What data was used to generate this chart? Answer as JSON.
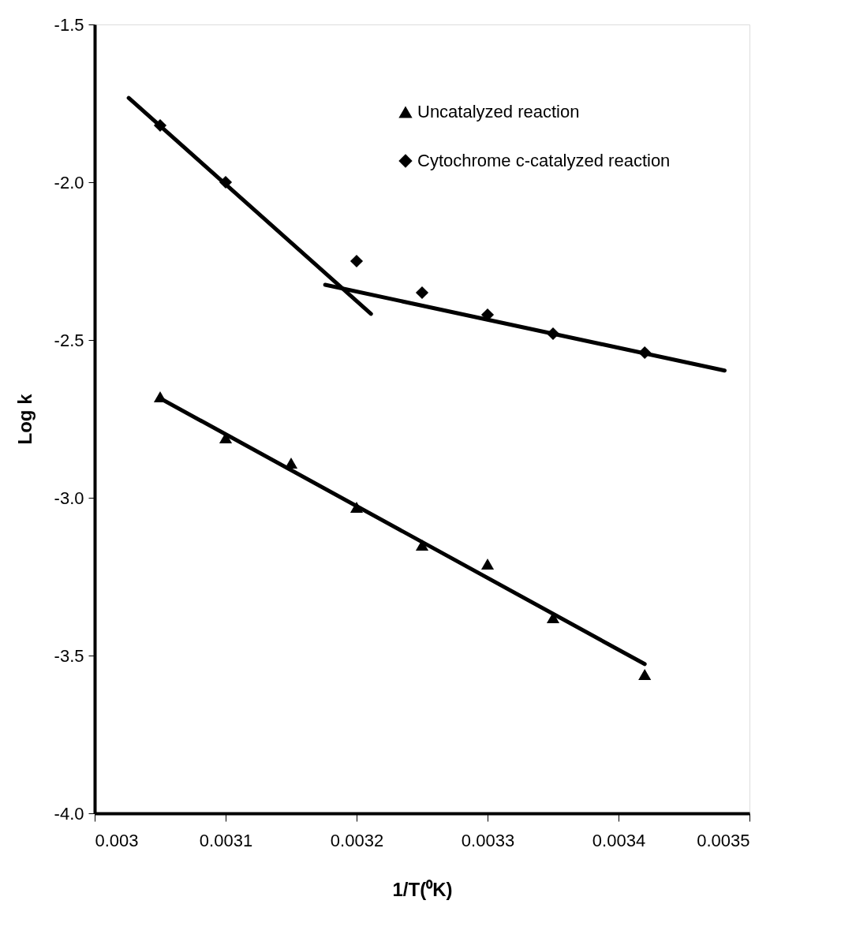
{
  "chart_data": {
    "type": "scatter",
    "xlabel": "1/T(⁰K)",
    "ylabel": "Log k",
    "xlim": [
      0.003,
      0.0035
    ],
    "ylim": [
      -4.0,
      -1.5
    ],
    "xticks": [
      0.003,
      0.0031,
      0.0032,
      0.0033,
      0.0034,
      0.0035
    ],
    "yticks": [
      {
        "value": -4.0,
        "label": "-4.0"
      },
      {
        "value": -3.5,
        "label": "-3.5"
      },
      {
        "value": -3.0,
        "label": "-3.0"
      },
      {
        "value": -2.5,
        "label": "-2.5"
      },
      {
        "value": -2.0,
        "label": "-2.0"
      },
      {
        "value": -1.5,
        "label": "-1.5"
      }
    ],
    "grid": false,
    "legend": "top right",
    "series": [
      {
        "name": "Uncatalyzed reaction",
        "marker": "triangle",
        "color": "#000000",
        "x": [
          0.00305,
          0.0031,
          0.00315,
          0.0032,
          0.00325,
          0.0033,
          0.00335,
          0.00342
        ],
        "values": [
          -2.68,
          -2.81,
          -2.89,
          -3.03,
          -3.15,
          -3.21,
          -3.38,
          -3.56
        ]
      },
      {
        "name": "Cytochrome c-catalyzed reaction",
        "marker": "diamond",
        "color": "#000000",
        "x": [
          0.00305,
          0.0031,
          0.0032,
          0.00325,
          0.0033,
          0.00335,
          0.00342
        ],
        "values": [
          -1.82,
          -2.0,
          -2.25,
          -2.35,
          -2.42,
          -2.48,
          -2.54
        ]
      },
      {
        "type": "line",
        "marker": "none",
        "line_style": "solid",
        "color": "#000000",
        "x": [
          0.00305,
          0.00342
        ],
        "values": [
          -2.685,
          -3.527
        ]
      },
      {
        "type": "line",
        "marker": "none",
        "line_style": "solid",
        "color": "#000000",
        "x": [
          0.003026,
          0.003211
        ],
        "values": [
          -1.733,
          -2.417
        ]
      },
      {
        "type": "line",
        "marker": "none",
        "line_style": "solid",
        "color": "#000000",
        "x": [
          0.003176,
          0.003481
        ],
        "values": [
          -2.325,
          -2.597
        ]
      }
    ]
  }
}
